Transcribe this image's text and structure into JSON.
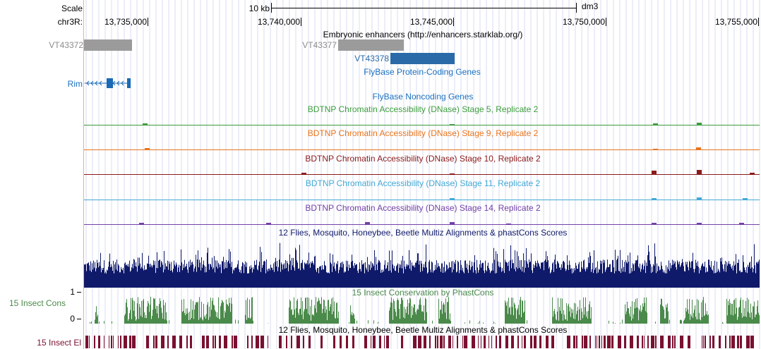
{
  "ruler": {
    "scale_label": "Scale",
    "chrom_label": "chr3R:",
    "scale_text": "10 kb",
    "assembly": "dm3",
    "positions": [
      "13,735,000",
      "13,740,000",
      "13,745,000",
      "13,750,000",
      "13,755,000"
    ]
  },
  "tracks": {
    "enhancers": {
      "title": "Embryonic enhancers (http://enhancers.starklab.org/)",
      "items": [
        "VT43372",
        "VT43377",
        "VT43378"
      ]
    },
    "flybase_coding": {
      "title": "FlyBase Protein-Coding Genes",
      "gene": "Rim"
    },
    "flybase_noncoding": {
      "title": "FlyBase Noncoding Genes"
    },
    "dnase": [
      {
        "title": "BDTNP Chromatin Accessibility (DNase) Stage 5, Replicate 2",
        "color": "#3c9c3c"
      },
      {
        "title": "BDTNP Chromatin Accessibility (DNase) Stage 9, Replicate 2",
        "color": "#e8741c"
      },
      {
        "title": "BDTNP Chromatin Accessibility (DNase) Stage 10, Replicate 2",
        "color": "#8b1a1a"
      },
      {
        "title": "BDTNP Chromatin Accessibility (DNase) Stage 11, Replicate 2",
        "color": "#42a8d6"
      },
      {
        "title": "BDTNP Chromatin Accessibility (DNase) Stage 14, Replicate 2",
        "color": "#7440a8"
      }
    ],
    "multiz": {
      "title": "12 Flies, Mosquito, Honeybee, Beetle Multiz Alignments & phastCons Scores",
      "color": "#101a6a"
    },
    "phastcons": {
      "title": "15 Insect Conservation by PhastCons",
      "side_label": "15 Insect Cons",
      "y_max": "1",
      "y_min": "0",
      "color": "#4a8a4a"
    },
    "elements": {
      "title": "12 Flies, Mosquito, Honeybee, Beetle Multiz Alignments & phastCons Scores",
      "side_label": "15 Insect El",
      "color": "#7a1030"
    }
  }
}
